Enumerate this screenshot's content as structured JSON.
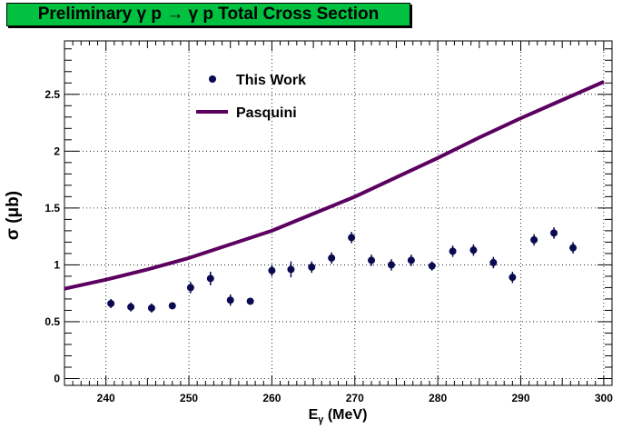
{
  "chart_data": {
    "type": "scatter",
    "title": "Preliminary γ p → γ p Total Cross Section",
    "xlabel_main": "E",
    "xlabel_sub": "γ",
    "xlabel_unit": " (MeV)",
    "ylabel": "σ (μb)",
    "xlim": [
      235,
      301
    ],
    "ylim": [
      -0.06,
      2.97
    ],
    "xticks": [
      240,
      250,
      260,
      270,
      280,
      290,
      300
    ],
    "yticks": [
      0,
      0.5,
      1,
      1.5,
      2,
      2.5
    ],
    "ytick_labels": [
      "0",
      "0.5",
      "1",
      "1.5",
      "2",
      "2.5"
    ],
    "grid": true,
    "legend_position": "top-left",
    "colors": {
      "points": "#0a0a50",
      "model": "#5c0060",
      "title_bg": "#00c140"
    },
    "series": [
      {
        "name": "This Work",
        "kind": "points",
        "x": [
          240.6,
          243.0,
          245.5,
          248.0,
          250.2,
          252.6,
          255.0,
          257.4,
          260.0,
          262.3,
          264.8,
          267.2,
          269.6,
          272.0,
          274.4,
          276.8,
          279.3,
          281.8,
          284.3,
          286.7,
          289.0,
          291.6,
          294.0,
          296.3
        ],
        "y": [
          0.66,
          0.63,
          0.62,
          0.64,
          0.8,
          0.88,
          0.69,
          0.68,
          0.95,
          0.96,
          0.98,
          1.06,
          1.24,
          1.04,
          1.0,
          1.04,
          0.99,
          1.12,
          1.13,
          1.02,
          0.89,
          1.22,
          1.28,
          1.15
        ],
        "yerr": [
          0.04,
          0.04,
          0.04,
          0.02,
          0.05,
          0.06,
          0.05,
          0.02,
          0.05,
          0.07,
          0.05,
          0.05,
          0.05,
          0.05,
          0.05,
          0.05,
          0.04,
          0.05,
          0.05,
          0.05,
          0.05,
          0.05,
          0.05,
          0.05
        ]
      },
      {
        "name": "Pasquini",
        "kind": "line",
        "x": [
          235,
          240,
          245,
          250,
          255,
          260,
          265,
          270,
          275,
          280,
          285,
          290,
          295,
          300
        ],
        "y": [
          0.79,
          0.87,
          0.96,
          1.06,
          1.18,
          1.3,
          1.45,
          1.6,
          1.77,
          1.94,
          2.12,
          2.29,
          2.45,
          2.61
        ]
      }
    ]
  }
}
